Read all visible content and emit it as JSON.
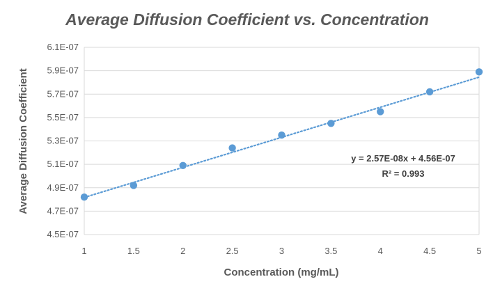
{
  "chart_data": {
    "type": "scatter",
    "title": "Average Diffusion Coefficient vs. Concentration",
    "xlabel": "Concentration (mg/mL)",
    "ylabel": "Average Diffusion Coefficient",
    "xlim": [
      1,
      5
    ],
    "ylim": [
      4.5e-07,
      6.1e-07
    ],
    "x_ticks": [
      1,
      1.5,
      2,
      2.5,
      3,
      3.5,
      4,
      4.5,
      5
    ],
    "x_tick_labels": [
      "1",
      "1.5",
      "2",
      "2.5",
      "3",
      "3.5",
      "4",
      "4.5",
      "5"
    ],
    "y_ticks": [
      4.5e-07,
      4.7e-07,
      4.9e-07,
      5.1e-07,
      5.3e-07,
      5.5e-07,
      5.7e-07,
      5.9e-07,
      6.1e-07
    ],
    "y_tick_labels": [
      "4.5E-07",
      "4.7E-07",
      "4.9E-07",
      "5.1E-07",
      "5.3E-07",
      "5.5E-07",
      "5.7E-07",
      "5.9E-07",
      "6.1E-07"
    ],
    "grid": "horizontal",
    "legend": "none",
    "series": [
      {
        "x": [
          1,
          1.5,
          2,
          2.5,
          3,
          3.5,
          4,
          4.5,
          5
        ],
        "y": [
          4.82e-07,
          4.92e-07,
          5.09e-07,
          5.24e-07,
          5.35e-07,
          5.45e-07,
          5.55e-07,
          5.72e-07,
          5.89e-07
        ],
        "color": "#5b9bd5"
      }
    ],
    "trendline": {
      "type": "linear",
      "slope": 2.57e-08,
      "intercept": 4.56e-07,
      "style": "dotted",
      "color": "#5b9bd5",
      "equation_label": "y = 2.57E-08x + 4.56E-07",
      "r2_label": "R² = 0.993"
    }
  }
}
